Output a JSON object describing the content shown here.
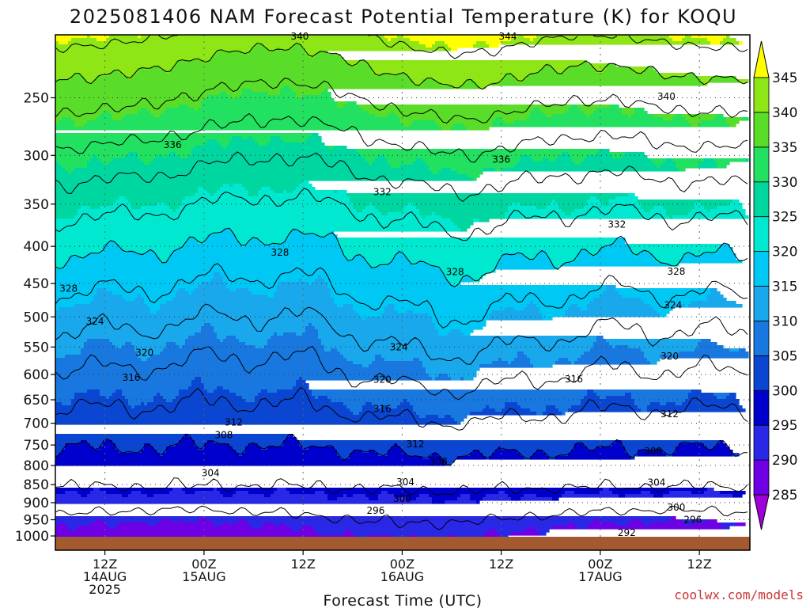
{
  "chart_data": {
    "type": "heatmap",
    "title": "2025081406 NAM Forecast Potential Temperature (K) for KOQU",
    "xlabel": "Forecast Time (UTC)",
    "ylabel": "",
    "credit": "coolwx.com/models",
    "y_scale": "log",
    "ylim": [
      1000,
      200
    ],
    "y_ticks": [
      250,
      300,
      350,
      400,
      450,
      500,
      550,
      600,
      650,
      700,
      750,
      800,
      850,
      900,
      950,
      1000
    ],
    "xlim": [
      6,
      72
    ],
    "x_ticks": [
      {
        "hour": 12,
        "lines": [
          "12Z",
          "14AUG",
          "2025"
        ]
      },
      {
        "hour": 24,
        "lines": [
          "00Z",
          "15AUG"
        ]
      },
      {
        "hour": 36,
        "lines": [
          "12Z"
        ]
      },
      {
        "hour": 48,
        "lines": [
          "00Z",
          "16AUG"
        ]
      },
      {
        "hour": 60,
        "lines": [
          "12Z"
        ]
      },
      {
        "hour": 72,
        "lines": [
          "00Z",
          "17AUG"
        ]
      },
      {
        "hour": 84,
        "lines": [
          "12Z"
        ]
      }
    ],
    "grid": true,
    "colorbar": {
      "levels": [
        285,
        290,
        295,
        300,
        305,
        310,
        315,
        320,
        325,
        330,
        335,
        340,
        345
      ],
      "colors": [
        "#a000d8",
        "#6e00e6",
        "#2828e6",
        "#0000cd",
        "#0a46d2",
        "#1878e0",
        "#1aa8ec",
        "#00c8f5",
        "#00e8cf",
        "#00d6a0",
        "#22e060",
        "#5add28",
        "#8ee616",
        "#c2f000",
        "#ffff00"
      ]
    },
    "contour_levels": [
      292,
      296,
      300,
      304,
      308,
      312,
      316,
      320,
      324,
      328,
      332,
      336,
      340,
      344
    ],
    "contour_labels": [
      {
        "level": 340,
        "x_hour": 35.6,
        "p": 206
      },
      {
        "level": 344,
        "x_hour": 60.8,
        "p": 206
      },
      {
        "level": 340,
        "x_hour": 80,
        "p": 249
      },
      {
        "level": 336,
        "x_hour": 20.2,
        "p": 290
      },
      {
        "level": 336,
        "x_hour": 60,
        "p": 304
      },
      {
        "level": 332,
        "x_hour": 45.6,
        "p": 337
      },
      {
        "level": 332,
        "x_hour": 74,
        "p": 373
      },
      {
        "level": 328,
        "x_hour": 33.2,
        "p": 408
      },
      {
        "level": 328,
        "x_hour": 54.4,
        "p": 434
      },
      {
        "level": 328,
        "x_hour": 81.2,
        "p": 433
      },
      {
        "level": 328,
        "x_hour": 7.6,
        "p": 457
      },
      {
        "level": 324,
        "x_hour": 10.8,
        "p": 507
      },
      {
        "level": 324,
        "x_hour": 80.8,
        "p": 482
      },
      {
        "level": 324,
        "x_hour": 47.6,
        "p": 550
      },
      {
        "level": 320,
        "x_hour": 16.8,
        "p": 560
      },
      {
        "level": 320,
        "x_hour": 80.4,
        "p": 566
      },
      {
        "level": 320,
        "x_hour": 45.6,
        "p": 610
      },
      {
        "level": 316,
        "x_hour": 15.2,
        "p": 606
      },
      {
        "level": 316,
        "x_hour": 68.8,
        "p": 609
      },
      {
        "level": 316,
        "x_hour": 45.6,
        "p": 669
      },
      {
        "level": 312,
        "x_hour": 27.6,
        "p": 698
      },
      {
        "level": 312,
        "x_hour": 80.4,
        "p": 680
      },
      {
        "level": 312,
        "x_hour": 49.6,
        "p": 748
      },
      {
        "level": 308,
        "x_hour": 26.4,
        "p": 727
      },
      {
        "level": 308,
        "x_hour": 52.4,
        "p": 790
      },
      {
        "level": 308,
        "x_hour": 78.4,
        "p": 765
      },
      {
        "level": 304,
        "x_hour": 24.8,
        "p": 819
      },
      {
        "level": 304,
        "x_hour": 48.4,
        "p": 843
      },
      {
        "level": 304,
        "x_hour": 78.8,
        "p": 844
      },
      {
        "level": 300,
        "x_hour": 48,
        "p": 889
      },
      {
        "level": 300,
        "x_hour": 81.2,
        "p": 914
      },
      {
        "level": 296,
        "x_hour": 44.8,
        "p": 923
      },
      {
        "level": 296,
        "x_hour": 83.2,
        "p": 950
      },
      {
        "level": 292,
        "x_hour": 75.2,
        "p": 990
      }
    ]
  }
}
